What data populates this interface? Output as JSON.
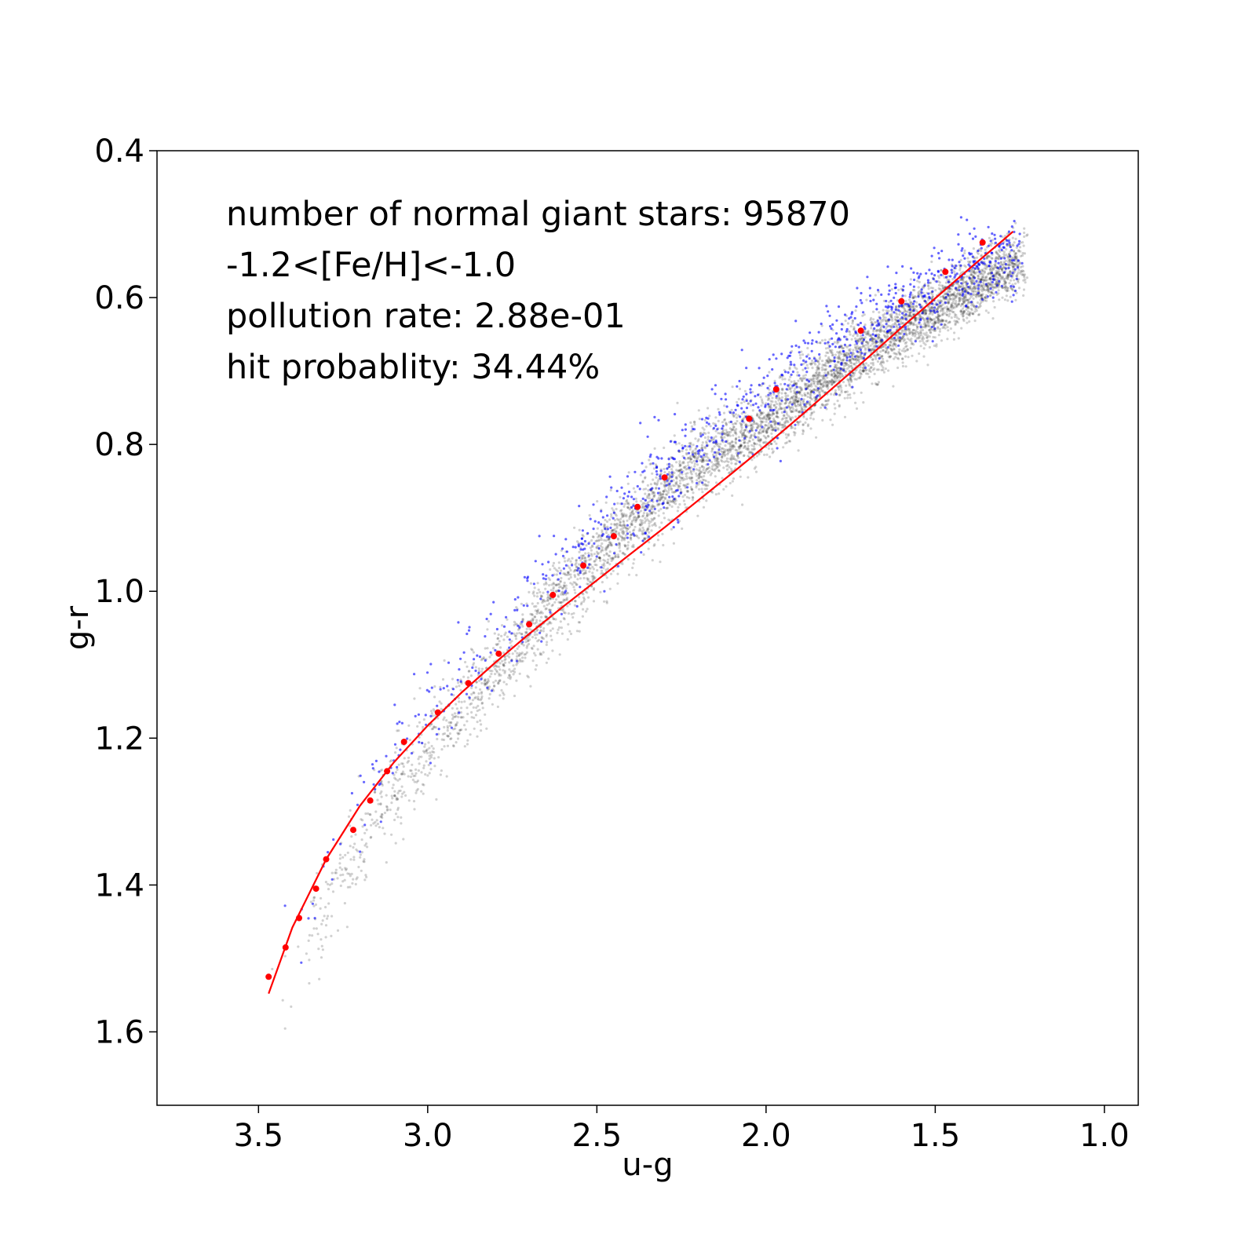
{
  "chart_data": {
    "type": "scatter",
    "title": "",
    "xlabel": "u-g",
    "ylabel": "g-r",
    "xlim": [
      3.8,
      0.9
    ],
    "ylim": [
      1.7,
      0.4
    ],
    "x_inverted": true,
    "y_inverted": true,
    "grid": false,
    "xticks": [
      {
        "value": 3.5,
        "label": "3.5"
      },
      {
        "value": 3.0,
        "label": "3.0"
      },
      {
        "value": 2.5,
        "label": "2.5"
      },
      {
        "value": 2.0,
        "label": "2.0"
      },
      {
        "value": 1.5,
        "label": "1.5"
      },
      {
        "value": 1.0,
        "label": "1.0"
      }
    ],
    "yticks": [
      {
        "value": 0.4,
        "label": "0.4"
      },
      {
        "value": 0.6,
        "label": "0.6"
      },
      {
        "value": 0.8,
        "label": "0.8"
      },
      {
        "value": 1.0,
        "label": "1.0"
      },
      {
        "value": 1.2,
        "label": "1.2"
      },
      {
        "value": 1.4,
        "label": "1.4"
      },
      {
        "value": 1.6,
        "label": "1.6"
      }
    ],
    "annotations": [
      "number of normal giant stars: 95870",
      "-1.2<[Fe/H]<-1.0",
      "pollution rate: 2.88e-01",
      "hit probablity: 34.44%"
    ],
    "series": [
      {
        "kind": "scatter-cloud",
        "color": "#000000",
        "opacity": 0.18,
        "ridge": [
          [
            3.45,
            1.56
          ],
          [
            3.3,
            1.43
          ],
          [
            3.15,
            1.3
          ],
          [
            3.0,
            1.21
          ],
          [
            2.8,
            1.11
          ],
          [
            2.6,
            1.0
          ],
          [
            2.4,
            0.91
          ],
          [
            2.2,
            0.83
          ],
          [
            2.0,
            0.77
          ],
          [
            1.8,
            0.7
          ],
          [
            1.6,
            0.64
          ],
          [
            1.4,
            0.59
          ],
          [
            1.25,
            0.55
          ]
        ],
        "scatter_width": 0.02
      },
      {
        "kind": "scatter-points",
        "color": "#0000ff",
        "opacity": 0.6,
        "ridge": [
          [
            3.45,
            1.53
          ],
          [
            3.3,
            1.39
          ],
          [
            3.15,
            1.26
          ],
          [
            3.0,
            1.18
          ],
          [
            2.8,
            1.08
          ],
          [
            2.6,
            0.97
          ],
          [
            2.4,
            0.88
          ],
          [
            2.2,
            0.8
          ],
          [
            2.0,
            0.73
          ],
          [
            1.8,
            0.67
          ],
          [
            1.6,
            0.61
          ],
          [
            1.4,
            0.57
          ],
          [
            1.25,
            0.54
          ]
        ],
        "scatter_width": 0.025
      },
      {
        "kind": "points",
        "color": "#ff0000",
        "x": [
          3.47,
          3.42,
          3.38,
          3.33,
          3.3,
          3.22,
          3.17,
          3.12,
          3.07,
          2.97,
          2.88,
          2.79,
          2.7,
          2.63,
          2.54,
          2.45,
          2.38,
          2.3,
          2.05,
          1.97,
          1.72,
          1.6,
          1.47,
          1.36
        ],
        "y": [
          1.525,
          1.485,
          1.445,
          1.405,
          1.365,
          1.325,
          1.285,
          1.245,
          1.205,
          1.165,
          1.125,
          1.085,
          1.045,
          1.005,
          0.965,
          0.925,
          0.885,
          0.845,
          0.765,
          0.725,
          0.645,
          0.605,
          0.565,
          0.525
        ]
      },
      {
        "kind": "line",
        "color": "#ff0000",
        "x": [
          3.47,
          3.4,
          3.3,
          3.2,
          3.1,
          3.0,
          2.9,
          2.8,
          2.7,
          2.6,
          2.5,
          2.4,
          2.3,
          2.2,
          2.1,
          2.0,
          1.9,
          1.8,
          1.7,
          1.6,
          1.5,
          1.4,
          1.3,
          1.27
        ],
        "y": [
          1.548,
          1.458,
          1.365,
          1.292,
          1.233,
          1.183,
          1.138,
          1.097,
          1.058,
          1.021,
          0.985,
          0.949,
          0.913,
          0.876,
          0.839,
          0.801,
          0.762,
          0.722,
          0.682,
          0.641,
          0.601,
          0.561,
          0.522,
          0.51
        ]
      }
    ]
  }
}
